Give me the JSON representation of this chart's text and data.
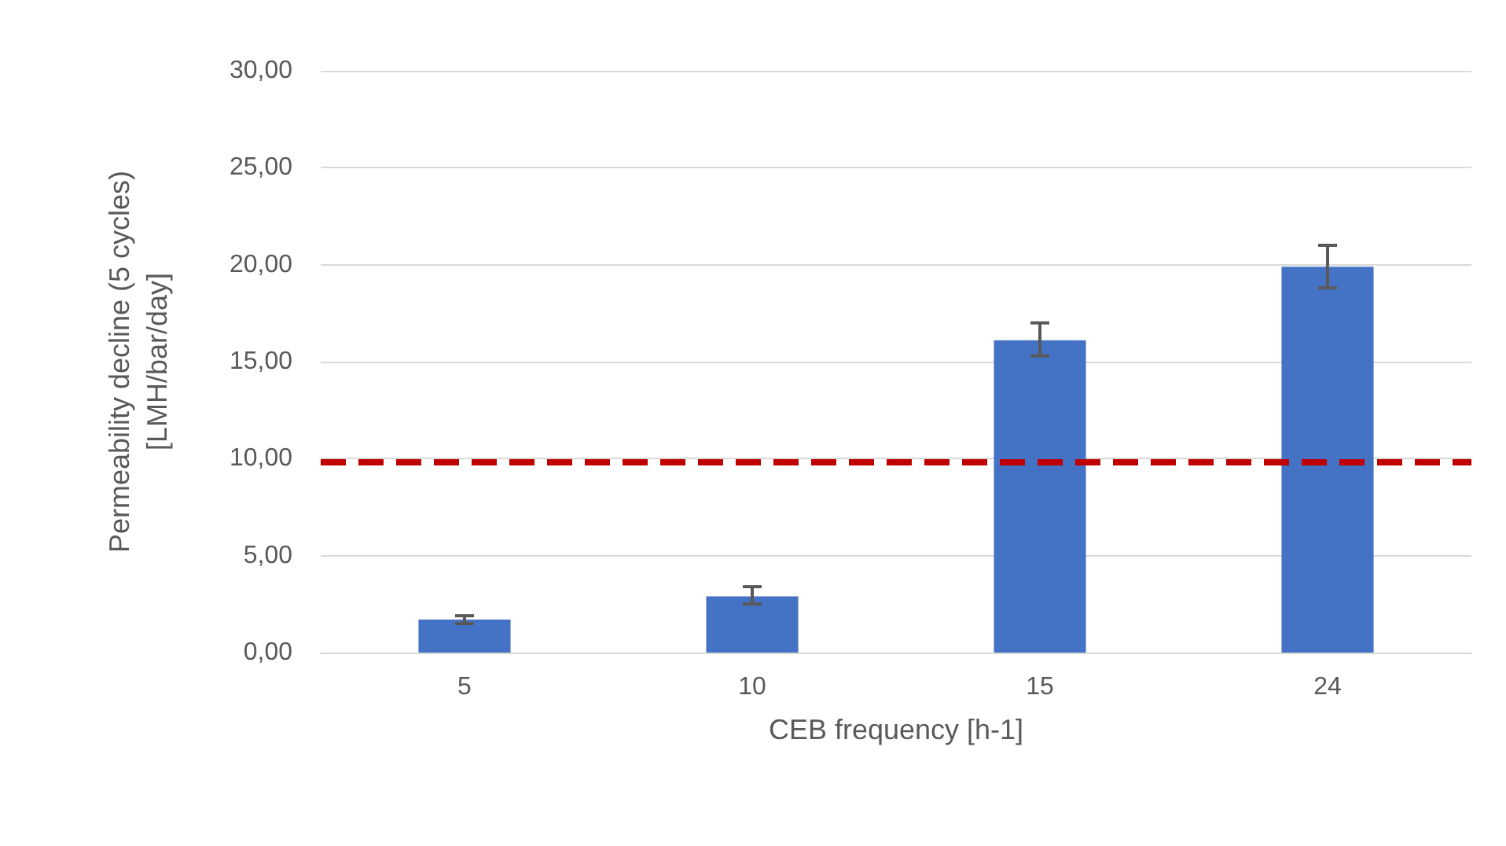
{
  "chart_data": {
    "type": "bar",
    "xlabel": "CEB frequency [h-1]",
    "ylabel": "Permeability decline (5 cycles)\n[LMH/bar/day]",
    "categories": [
      "5",
      "10",
      "15",
      "24"
    ],
    "values": [
      1.7,
      2.9,
      16.1,
      19.9
    ],
    "color": "#4472c4",
    "errors": [
      [
        1.5,
        1.9
      ],
      [
        2.5,
        3.4
      ],
      [
        15.3,
        17.0
      ],
      [
        18.8,
        21.0
      ]
    ],
    "ylim": [
      0,
      30
    ],
    "yticks": [
      {
        "value": 0,
        "label": "0,00"
      },
      {
        "value": 5,
        "label": "5,00"
      },
      {
        "value": 10,
        "label": "10,00"
      },
      {
        "value": 15,
        "label": "15,00"
      },
      {
        "value": 20,
        "label": "20,00"
      },
      {
        "value": 25,
        "label": "25,00"
      },
      {
        "value": 30,
        "label": "30,00"
      }
    ],
    "ref_lines": [
      {
        "axis": "y",
        "value": 9.8,
        "color": "#c00000",
        "line_style": "dashed"
      }
    ],
    "grid": "y"
  }
}
